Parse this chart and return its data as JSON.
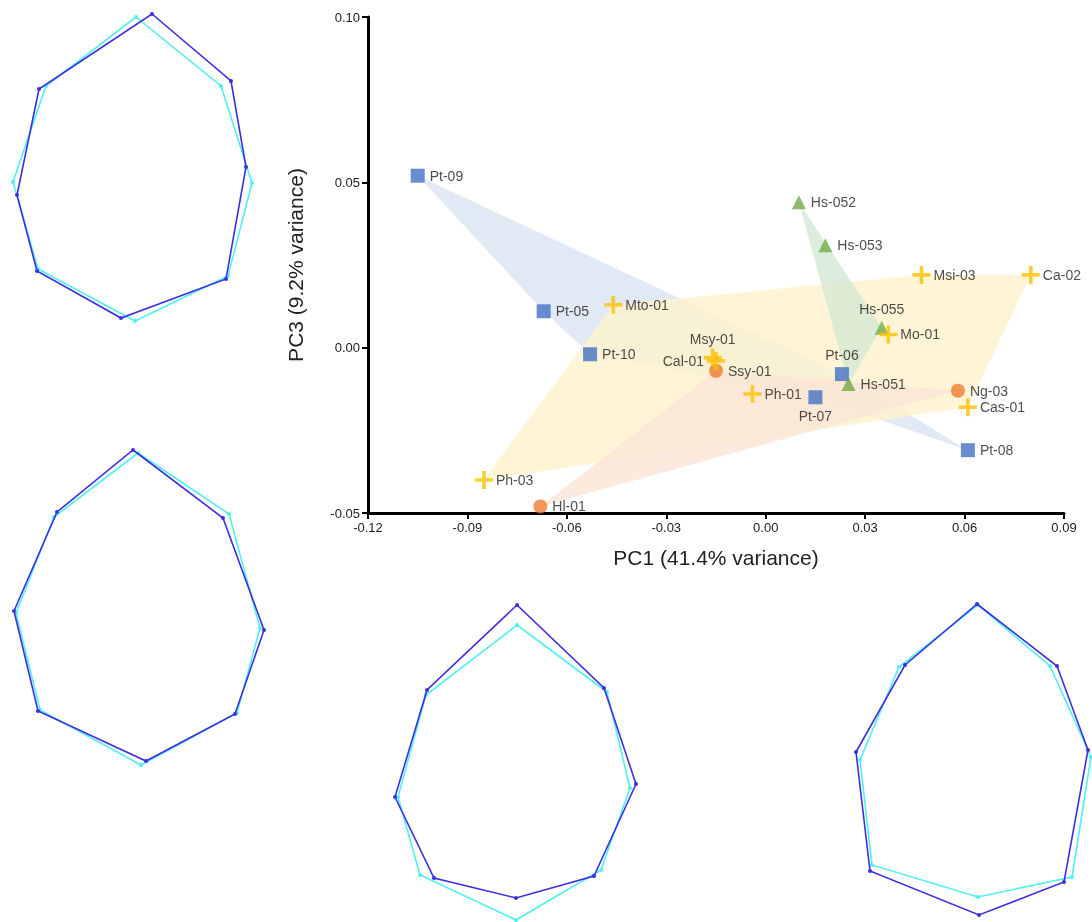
{
  "chart_data": {
    "type": "scatter",
    "xlabel": "PC1 (41.4% variance)",
    "ylabel": "PC3 (9.2% variance)",
    "xlim": [
      -0.12,
      0.09
    ],
    "ylim": [
      -0.05,
      0.1
    ],
    "xticks": [
      {
        "value": -0.12,
        "label": "-0.12"
      },
      {
        "value": -0.09,
        "label": "-0.09"
      },
      {
        "value": -0.06,
        "label": "-0.06"
      },
      {
        "value": -0.03,
        "label": "-0.03"
      },
      {
        "value": 0,
        "label": "0.00"
      },
      {
        "value": 0.03,
        "label": "0.03"
      },
      {
        "value": 0.06,
        "label": "0.06"
      },
      {
        "value": 0.09,
        "label": "0.09"
      }
    ],
    "yticks": [
      {
        "value": -0.05,
        "label": "-0.05"
      },
      {
        "value": 0,
        "label": "0.00"
      },
      {
        "value": 0.05,
        "label": "0.05"
      },
      {
        "value": 0.1,
        "label": "0.10"
      }
    ],
    "grid": false,
    "series": [
      {
        "type": "area",
        "color": "#dae3f3",
        "x": [
          -0.105,
          0.023,
          0.061,
          0.015,
          -0.053,
          -0.067,
          -0.105
        ],
        "values": [
          0.052,
          -0.008,
          -0.031,
          -0.015,
          -0.002,
          0.011,
          0.052
        ]
      },
      {
        "type": "area",
        "color": "#fff2cc",
        "x": [
          -0.046,
          0.047,
          0.08,
          0.061,
          -0.085,
          -0.046
        ],
        "values": [
          0.013,
          0.022,
          0.022,
          -0.018,
          -0.04,
          0.013
        ]
      },
      {
        "type": "area",
        "color": "#fbe5d6",
        "x": [
          -0.068,
          -0.015,
          0.058,
          -0.068
        ],
        "values": [
          -0.048,
          -0.007,
          -0.013,
          -0.048
        ]
      },
      {
        "type": "area",
        "color": "#d5e8d4",
        "x": [
          0.01,
          0.035,
          0.025,
          0.01
        ],
        "values": [
          0.044,
          0.006,
          -0.011,
          0.044
        ]
      },
      {
        "color": "#4472c4",
        "marker": "square",
        "x": [
          -0.105,
          -0.067,
          -0.053,
          0.023,
          0.015,
          0.061
        ],
        "values": [
          0.052,
          0.011,
          -0.002,
          -0.008,
          -0.015,
          -0.031
        ]
      },
      {
        "color": "#70ad47",
        "marker": "triangle",
        "x": [
          0.01,
          0.018,
          0.035,
          0.025
        ],
        "values": [
          0.044,
          0.031,
          0.006,
          -0.011
        ]
      },
      {
        "color": "#ed7d31",
        "marker": "circle",
        "x": [
          -0.015,
          0.058,
          -0.068
        ],
        "values": [
          -0.007,
          -0.013,
          -0.048
        ]
      },
      {
        "color": "#ffc000",
        "marker": "cross",
        "x": [
          -0.046,
          -0.016,
          -0.015,
          -0.004,
          -0.085,
          0.047,
          0.08,
          0.037,
          0.061
        ],
        "values": [
          0.013,
          -0.003,
          -0.004,
          -0.014,
          -0.04,
          0.022,
          0.022,
          0.004,
          -0.018
        ]
      }
    ],
    "annotations": [
      {
        "text": "Pt-09",
        "x": -0.105,
        "y": 0.052
      },
      {
        "text": "Pt-05",
        "x": -0.067,
        "y": 0.011
      },
      {
        "text": "Pt-10",
        "x": -0.053,
        "y": -0.002
      },
      {
        "text": "Pt-06",
        "x": 0.023,
        "y": -0.008
      },
      {
        "text": "Pt-07",
        "x": 0.015,
        "y": -0.015
      },
      {
        "text": "Pt-08",
        "x": 0.061,
        "y": -0.031
      },
      {
        "text": "Hs-052",
        "x": 0.01,
        "y": 0.044
      },
      {
        "text": "Hs-053",
        "x": 0.018,
        "y": 0.031
      },
      {
        "text": "Hs-055",
        "x": 0.035,
        "y": 0.006
      },
      {
        "text": "Hs-051",
        "x": 0.025,
        "y": -0.011
      },
      {
        "text": "Ssy-01",
        "x": -0.015,
        "y": -0.007
      },
      {
        "text": "Ng-03",
        "x": 0.058,
        "y": -0.013
      },
      {
        "text": "Hl-01",
        "x": -0.068,
        "y": -0.048
      },
      {
        "text": "Mto-01",
        "x": -0.046,
        "y": 0.013
      },
      {
        "text": "Msy-01",
        "x": -0.016,
        "y": -0.003
      },
      {
        "text": "Cal-01",
        "x": -0.015,
        "y": -0.004
      },
      {
        "text": "Ph-01",
        "x": -0.004,
        "y": -0.014
      },
      {
        "text": "Ph-03",
        "x": -0.085,
        "y": -0.04
      },
      {
        "text": "Msi-03",
        "x": 0.047,
        "y": 0.022
      },
      {
        "text": "Ca-02",
        "x": 0.08,
        "y": 0.022
      },
      {
        "text": "Mo-01",
        "x": 0.037,
        "y": 0.004
      },
      {
        "text": "Cas-01",
        "x": 0.061,
        "y": -0.018
      }
    ]
  }
}
